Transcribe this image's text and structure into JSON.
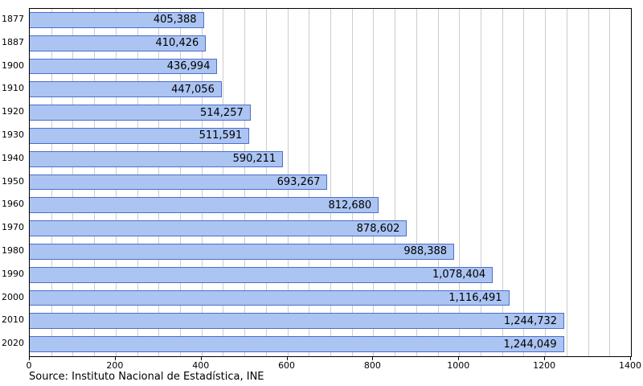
{
  "chart_data": {
    "type": "bar",
    "orientation": "horizontal",
    "title": "",
    "categories": [
      "1877",
      "1887",
      "1900",
      "1910",
      "1920",
      "1930",
      "1940",
      "1950",
      "1960",
      "1970",
      "1980",
      "1990",
      "2000",
      "2010",
      "2020"
    ],
    "values": [
      405388,
      410426,
      436994,
      447056,
      514257,
      511591,
      590211,
      693267,
      812680,
      878602,
      988388,
      1078404,
      1116491,
      1244732,
      1244049
    ],
    "value_labels": [
      "405,388",
      "410,426",
      "436,994",
      "447,056",
      "514,257",
      "511,591",
      "590,211",
      "693,267",
      "812,680",
      "878,602",
      "988,388",
      "1,078,404",
      "1,116,491",
      "1,244,732",
      "1,244,049"
    ],
    "x_axis": {
      "min": 0,
      "max": 1400,
      "tick_interval": 200,
      "minor_grid_interval": 50,
      "tick_labels": [
        "0",
        "200",
        "400",
        "600",
        "800",
        "1000",
        "1200",
        "1400"
      ],
      "value_scale_divisor": 1000
    },
    "grid": true,
    "legend": "none",
    "colors": {
      "bar_fill": "#abc4f2",
      "bar_border": "#4d6ec8",
      "gridline": "#cccccc",
      "plot_border": "#000000",
      "text": "#000000"
    }
  },
  "footer": {
    "source": "Source: Instituto Nacional de Estadística, INE"
  }
}
